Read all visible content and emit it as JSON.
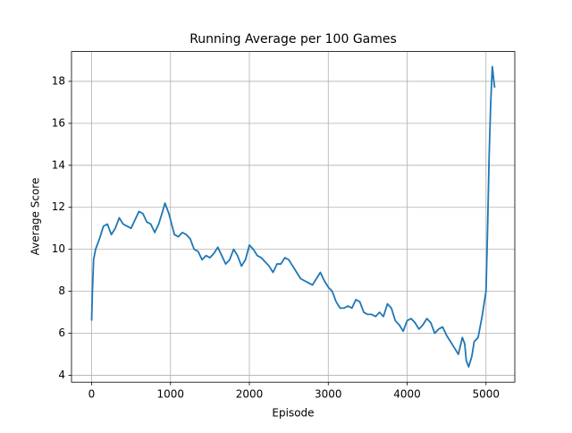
{
  "chart_data": {
    "type": "line",
    "title": "Running Average per 100 Games",
    "xlabel": "Episode",
    "ylabel": "Average Score",
    "x": [
      0,
      10,
      25,
      50,
      100,
      150,
      200,
      250,
      300,
      350,
      400,
      450,
      500,
      550,
      600,
      650,
      700,
      750,
      800,
      850,
      900,
      930,
      980,
      1000,
      1050,
      1100,
      1150,
      1200,
      1250,
      1300,
      1350,
      1400,
      1450,
      1500,
      1550,
      1600,
      1650,
      1700,
      1750,
      1800,
      1850,
      1900,
      1950,
      2000,
      2050,
      2100,
      2150,
      2200,
      2250,
      2300,
      2350,
      2400,
      2450,
      2500,
      2550,
      2600,
      2650,
      2700,
      2750,
      2800,
      2850,
      2900,
      2950,
      3000,
      3050,
      3100,
      3150,
      3200,
      3250,
      3300,
      3350,
      3400,
      3450,
      3500,
      3550,
      3600,
      3650,
      3700,
      3750,
      3800,
      3850,
      3900,
      3950,
      4000,
      4050,
      4100,
      4150,
      4200,
      4250,
      4300,
      4350,
      4400,
      4450,
      4500,
      4550,
      4600,
      4650,
      4700,
      4730,
      4750,
      4780,
      4820,
      4850,
      4900,
      4950,
      5000,
      5020,
      5040,
      5060,
      5080,
      5100,
      5110
    ],
    "values": [
      6.6,
      8.0,
      9.5,
      10.0,
      10.5,
      11.1,
      11.2,
      10.7,
      11.0,
      11.5,
      11.2,
      11.1,
      11.0,
      11.4,
      11.8,
      11.7,
      11.3,
      11.2,
      10.8,
      11.2,
      11.8,
      12.2,
      11.7,
      11.4,
      10.7,
      10.6,
      10.8,
      10.7,
      10.5,
      10.0,
      9.9,
      9.5,
      9.7,
      9.6,
      9.8,
      10.1,
      9.7,
      9.3,
      9.5,
      10.0,
      9.7,
      9.2,
      9.5,
      10.2,
      10.0,
      9.7,
      9.6,
      9.4,
      9.2,
      8.9,
      9.3,
      9.3,
      9.6,
      9.5,
      9.2,
      8.9,
      8.6,
      8.5,
      8.4,
      8.3,
      8.6,
      8.9,
      8.5,
      8.2,
      8.0,
      7.5,
      7.2,
      7.2,
      7.3,
      7.2,
      7.6,
      7.5,
      7.0,
      6.9,
      6.9,
      6.8,
      7.0,
      6.8,
      7.4,
      7.2,
      6.6,
      6.4,
      6.1,
      6.6,
      6.7,
      6.5,
      6.2,
      6.4,
      6.7,
      6.5,
      6.0,
      6.2,
      6.3,
      5.9,
      5.6,
      5.3,
      5.0,
      5.8,
      5.5,
      4.7,
      4.4,
      4.9,
      5.6,
      5.8,
      6.8,
      8.0,
      11.0,
      14.5,
      17.0,
      18.7,
      18.0,
      17.7
    ],
    "color": "#1f77b4",
    "xlim": [
      -255,
      5365
    ],
    "ylim": [
      3.67,
      19.42
    ],
    "xticks": [
      0,
      1000,
      2000,
      3000,
      4000,
      5000
    ],
    "yticks": [
      4,
      6,
      8,
      10,
      12,
      14,
      16,
      18
    ],
    "grid": true
  }
}
